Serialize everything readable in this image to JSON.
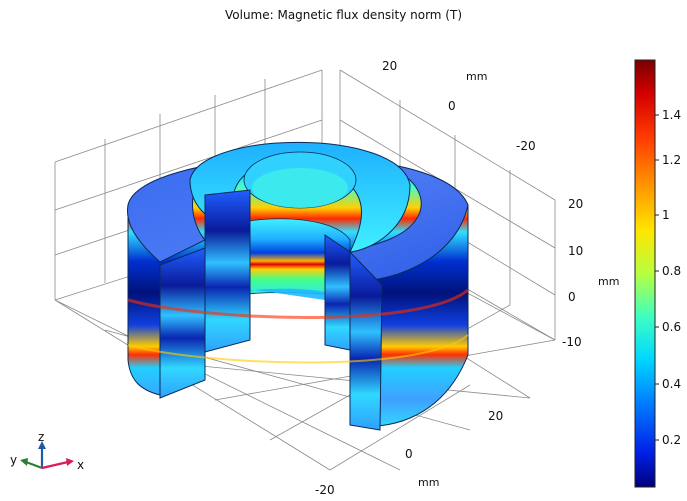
{
  "plot": {
    "title": "Volume: Magnetic flux density norm (T)"
  },
  "axes": {
    "y_axis": {
      "ticks": [
        "20",
        "0",
        "-20"
      ],
      "unit": "mm"
    },
    "z_axis": {
      "ticks": [
        "20",
        "10",
        "0",
        "-10"
      ],
      "unit": "mm"
    },
    "x_axis": {
      "ticks": [
        "20",
        "0",
        "-20"
      ],
      "unit": "mm"
    }
  },
  "colorbar": {
    "ticks": [
      "1.4",
      "1.2",
      "1",
      "0.8",
      "0.6",
      "0.4",
      "0.2"
    ],
    "colors": [
      "#7a0000",
      "#d40000",
      "#ff3a00",
      "#ff9a00",
      "#ffe600",
      "#b7ff3f",
      "#3fffbf",
      "#00d8ff",
      "#0080ff",
      "#0020e6",
      "#00007a"
    ]
  },
  "triad": {
    "x_label": "x",
    "y_label": "y",
    "z_label": "z",
    "x_color": "#d81b60",
    "y_color": "#2e7d32",
    "z_color": "#1e5aa8"
  }
}
